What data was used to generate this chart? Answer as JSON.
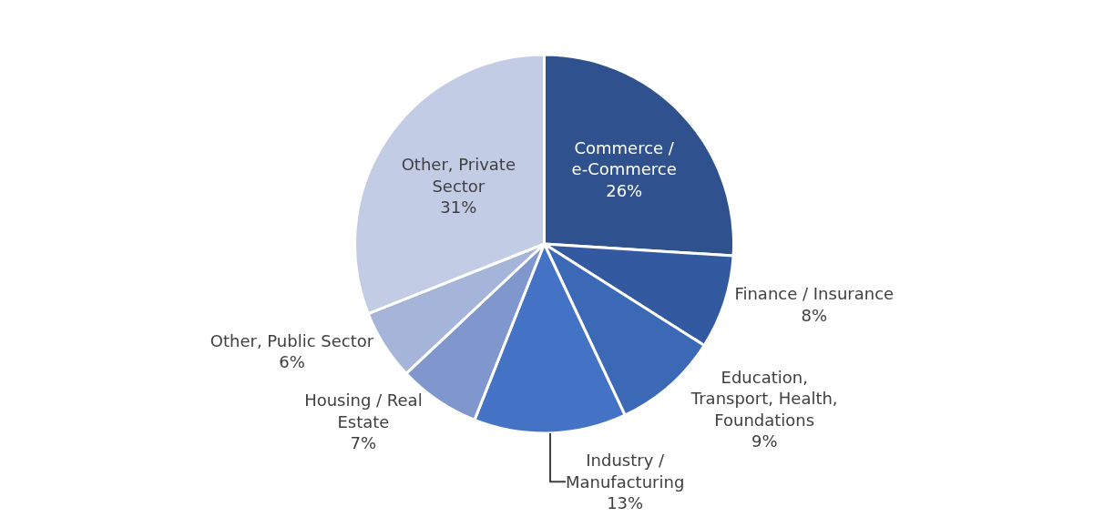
{
  "chart_data": {
    "type": "pie",
    "categories": [
      "Commerce / e-Commerce",
      "Finance / Insurance",
      "Education, Transport, Health, Foundations",
      "Industry / Manufacturing",
      "Housing / Real Estate",
      "Other, Public Sector",
      "Other, Private Sector"
    ],
    "values": [
      26,
      8,
      9,
      13,
      7,
      6,
      31
    ],
    "value_labels": [
      "26%",
      "8%",
      "9%",
      "13%",
      "7%",
      "6%",
      "31%"
    ],
    "colors": [
      "#2f528f",
      "#335aa1",
      "#3c69b5",
      "#4472c4",
      "#7f97cd",
      "#a5b4d9",
      "#c2cce5"
    ],
    "legend": false
  }
}
